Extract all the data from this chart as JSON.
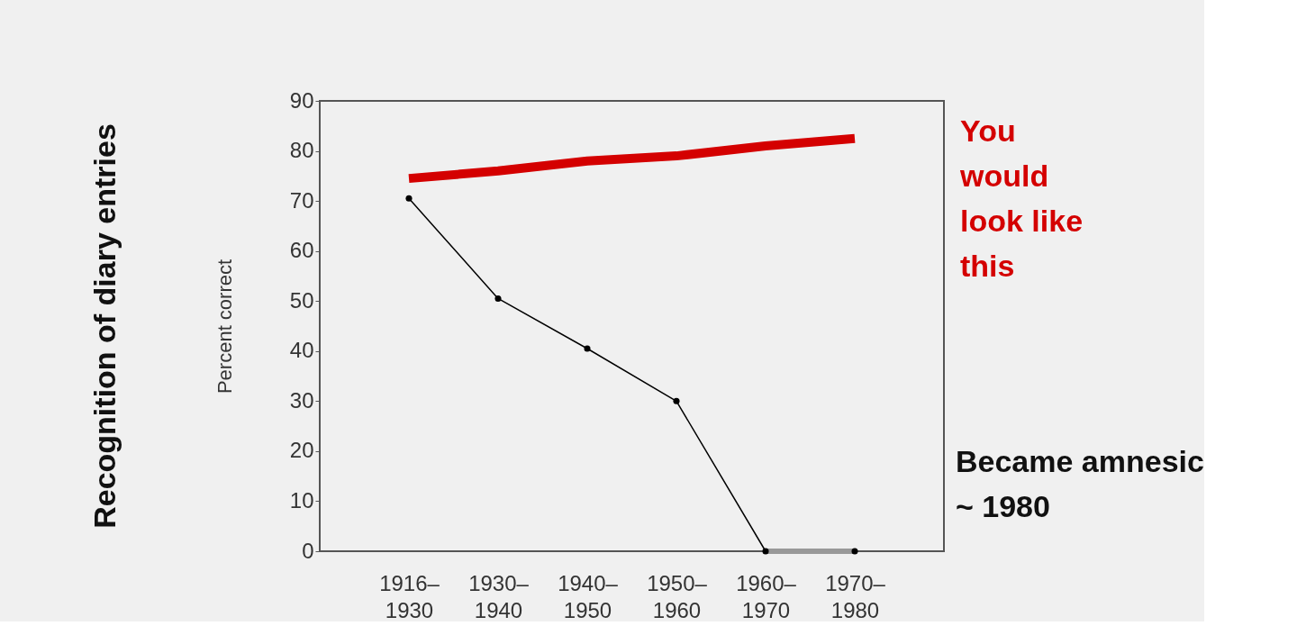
{
  "chart_data": {
    "type": "line",
    "ylabel": "Percent correct",
    "categories": [
      "1916–\n1930",
      "1930–\n1940",
      "1940–\n1950",
      "1950–\n1960",
      "1960–\n1970",
      "1970–\n1980"
    ],
    "series": [
      {
        "name": "You\nwould\nlook like\nthis",
        "color": "#d40000",
        "values": [
          74.5,
          76,
          78,
          79,
          81,
          82.5
        ],
        "marker": "none"
      },
      {
        "color": "#000000",
        "values": [
          70.5,
          50.5,
          40.5,
          30,
          0,
          0
        ],
        "marker": "circle"
      },
      {
        "color": "#999999",
        "values": [
          null,
          null,
          null,
          null,
          0,
          0
        ],
        "marker": "none"
      }
    ],
    "ylim": [
      0,
      90
    ],
    "yticks": [
      0,
      10,
      20,
      30,
      40,
      50,
      60,
      70,
      80,
      90
    ],
    "grid": false,
    "annotations": [
      "Recognition of diary entries",
      "Became amnesic\n~ 1980"
    ]
  }
}
